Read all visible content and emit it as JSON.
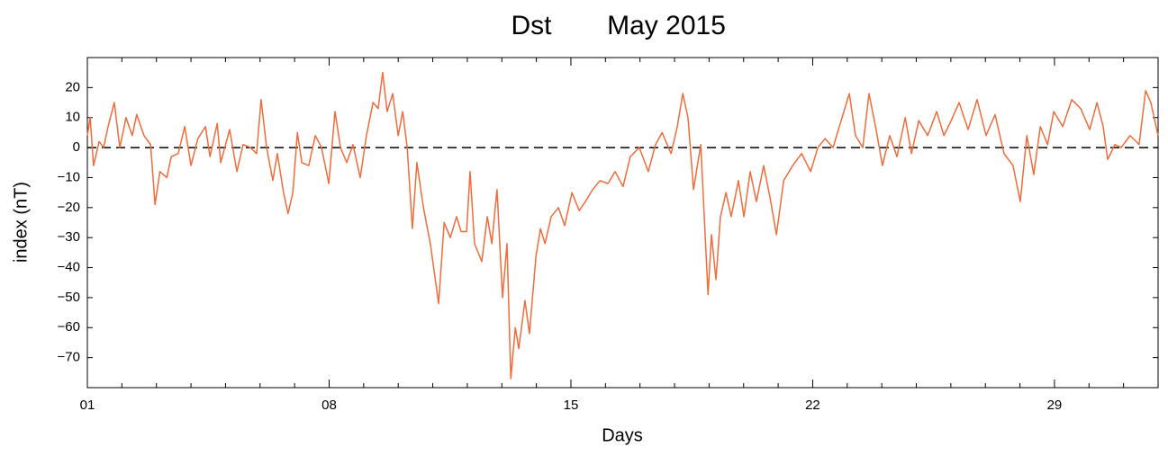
{
  "chart_data": {
    "type": "line",
    "title": "May 2015",
    "xlabel": "Days",
    "ylabel": "index (nT)",
    "series": [
      {
        "name": "Dst",
        "color": "#f26b3a",
        "x": [
          1.0,
          1.08,
          1.18,
          1.34,
          1.47,
          1.6,
          1.78,
          1.94,
          2.12,
          2.3,
          2.43,
          2.64,
          2.83,
          2.96,
          3.1,
          3.3,
          3.43,
          3.63,
          3.82,
          4.0,
          4.2,
          4.42,
          4.55,
          4.76,
          4.86,
          5.12,
          5.33,
          5.51,
          5.72,
          5.9,
          6.03,
          6.19,
          6.37,
          6.5,
          6.68,
          6.81,
          6.95,
          7.08,
          7.21,
          7.41,
          7.6,
          7.78,
          7.99,
          8.17,
          8.33,
          8.51,
          8.69,
          8.9,
          9.08,
          9.27,
          9.42,
          9.55,
          9.68,
          9.84,
          10.0,
          10.13,
          10.26,
          10.41,
          10.54,
          10.73,
          10.93,
          11.17,
          11.33,
          11.51,
          11.69,
          11.82,
          11.98,
          12.08,
          12.21,
          12.42,
          12.58,
          12.71,
          12.86,
          13.02,
          13.15,
          13.26,
          13.39,
          13.49,
          13.67,
          13.8,
          13.99,
          14.12,
          14.25,
          14.43,
          14.64,
          14.82,
          15.03,
          15.24,
          15.42,
          15.63,
          15.84,
          16.07,
          16.28,
          16.51,
          16.72,
          16.98,
          17.24,
          17.45,
          17.64,
          17.9,
          18.08,
          18.24,
          18.39,
          18.55,
          18.76,
          18.97,
          19.07,
          19.2,
          19.33,
          19.49,
          19.64,
          19.85,
          20.01,
          20.19,
          20.37,
          20.58,
          20.77,
          20.95,
          21.16,
          21.42,
          21.68,
          21.94,
          22.15,
          22.36,
          22.59,
          22.85,
          23.06,
          23.24,
          23.45,
          23.63,
          23.82,
          24.02,
          24.23,
          24.44,
          24.68,
          24.86,
          25.07,
          25.33,
          25.59,
          25.8,
          26.01,
          26.24,
          26.5,
          26.76,
          27.02,
          27.28,
          27.54,
          27.8,
          28.01,
          28.2,
          28.4,
          28.59,
          28.8,
          28.98,
          29.24,
          29.5,
          29.76,
          30.02,
          30.23,
          30.41,
          30.54,
          30.75,
          30.93,
          31.19,
          31.45,
          31.64,
          31.79,
          32.0
        ],
        "values": [
          4,
          10,
          -6,
          2,
          0,
          7,
          15,
          0,
          10,
          4,
          11,
          4,
          1,
          -19,
          -8,
          -10,
          -3,
          -2,
          7,
          -6,
          3,
          7,
          -3,
          8,
          -5,
          6,
          -8,
          1,
          0,
          -2,
          16,
          0,
          -11,
          -2,
          -15,
          -22,
          -15,
          5,
          -5,
          -6,
          4,
          0,
          -12,
          12,
          0,
          -5,
          1,
          -10,
          4,
          15,
          13,
          25,
          12,
          18,
          4,
          12,
          0,
          -27,
          -5,
          -20,
          -32,
          -52,
          -25,
          -30,
          -23,
          -28,
          -28,
          -8,
          -32,
          -38,
          -23,
          -32,
          -14,
          -50,
          -32,
          -77,
          -60,
          -67,
          -51,
          -62,
          -36,
          -27,
          -32,
          -23,
          -20,
          -26,
          -15,
          -21,
          -18,
          -14,
          -11,
          -12,
          -8,
          -13,
          -3,
          0,
          -8,
          1,
          5,
          -2,
          7,
          18,
          10,
          -14,
          1,
          -49,
          -29,
          -44,
          -23,
          -15,
          -23,
          -11,
          -23,
          -8,
          -18,
          -6,
          -17,
          -29,
          -11,
          -6,
          -2,
          -8,
          0,
          3,
          0,
          10,
          18,
          4,
          0,
          18,
          7,
          -6,
          4,
          -3,
          10,
          -2,
          9,
          4,
          12,
          4,
          9,
          15,
          6,
          16,
          4,
          11,
          -2,
          -6,
          -18,
          4,
          -9,
          7,
          1,
          12,
          7,
          16,
          13,
          6,
          15,
          7,
          -4,
          1,
          0,
          4,
          1,
          19,
          15,
          4
        ]
      }
    ],
    "xlim": [
      1,
      32
    ],
    "xticks": [
      {
        "value": 1,
        "label": "01"
      },
      {
        "value": 8,
        "label": "08"
      },
      15,
      22,
      29
    ],
    "xminorticks": [
      2,
      3,
      4,
      5,
      6,
      7,
      9,
      10,
      11,
      12,
      13,
      14,
      16,
      17,
      18,
      19,
      20,
      21,
      23,
      24,
      25,
      26,
      27,
      28,
      30,
      31
    ],
    "ylim": [
      -80,
      30
    ],
    "yticks": [
      {
        "value": -70,
        "label": "−70"
      },
      {
        "value": -60,
        "label": "−60"
      },
      {
        "value": -50,
        "label": "−50"
      },
      {
        "value": -40,
        "label": "−40"
      },
      {
        "value": -30,
        "label": "−30"
      },
      {
        "value": -20,
        "label": "−20"
      },
      {
        "value": -10,
        "label": "−10"
      },
      0,
      10,
      20
    ],
    "hline": 0
  }
}
